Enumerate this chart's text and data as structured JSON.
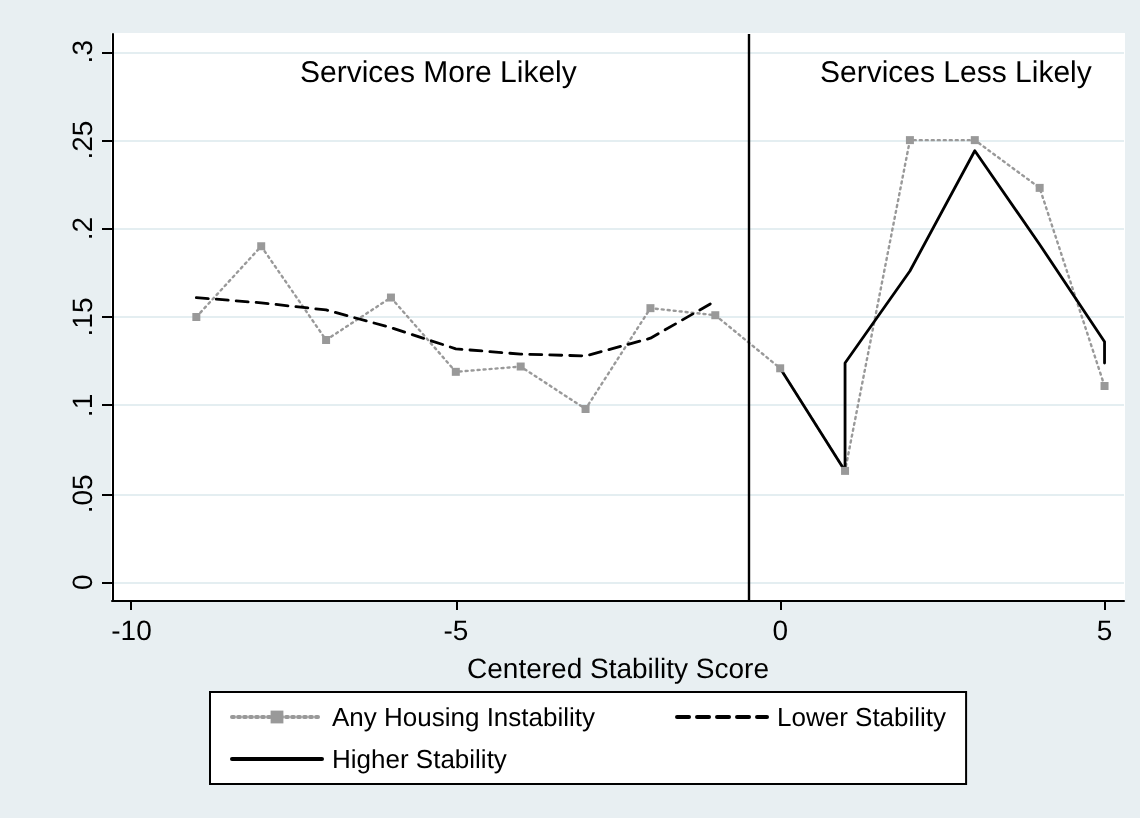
{
  "chart_data": {
    "type": "line",
    "xlabel": "Centered Stability Score",
    "annotations": [
      "Services More Likely",
      "Services Less Likely"
    ],
    "series": [
      {
        "name": "Any Housing Instability",
        "color": "#999999",
        "line_style": "dotted",
        "marker": "square",
        "x": [
          -9,
          -8,
          -7,
          -6,
          -5,
          -4,
          -3,
          -2,
          -1,
          0,
          1,
          2,
          3,
          4,
          5
        ],
        "values": [
          0.15,
          0.19,
          0.137,
          0.161,
          0.119,
          0.122,
          0.098,
          0.155,
          0.151,
          0.121,
          0.063,
          0.25,
          0.25,
          0.223,
          0.111
        ]
      },
      {
        "name": "Lower Stability",
        "color": "#000000",
        "line_style": "dashed",
        "marker": "none",
        "x": [
          -9,
          -8,
          -7,
          -6,
          -5,
          -4,
          -3,
          -2,
          -1
        ],
        "values": [
          0.161,
          0.158,
          0.154,
          0.144,
          0.132,
          0.129,
          0.128,
          0.138,
          0.159
        ]
      },
      {
        "name": "Higher Stability",
        "color": "#000000",
        "line_style": "solid",
        "marker": "none",
        "x": [
          0,
          1,
          1,
          2,
          3,
          4,
          5,
          5
        ],
        "values": [
          0.121,
          0.063,
          0.124,
          0.176,
          0.244,
          0.191,
          0.136,
          0.124
        ]
      }
    ],
    "xlim": [
      -10.3,
      5.3
    ],
    "xticks": [
      -10,
      -5,
      0,
      5
    ],
    "ylim": [
      -0.01,
      0.31
    ],
    "yticks": [
      0,
      {
        "value": 0.05,
        "label": ".05"
      },
      {
        "value": 0.1,
        "label": ".1"
      },
      {
        "value": 0.15,
        "label": ".15"
      },
      {
        "value": 0.2,
        "label": ".2"
      },
      {
        "value": 0.25,
        "label": ".25"
      },
      {
        "value": 0.3,
        "label": ".3"
      }
    ],
    "ref_lines": [
      {
        "axis": "x",
        "value": -0.5,
        "color": "#000000",
        "line_style": "solid"
      }
    ],
    "grid": "y",
    "legend": "bottom"
  }
}
